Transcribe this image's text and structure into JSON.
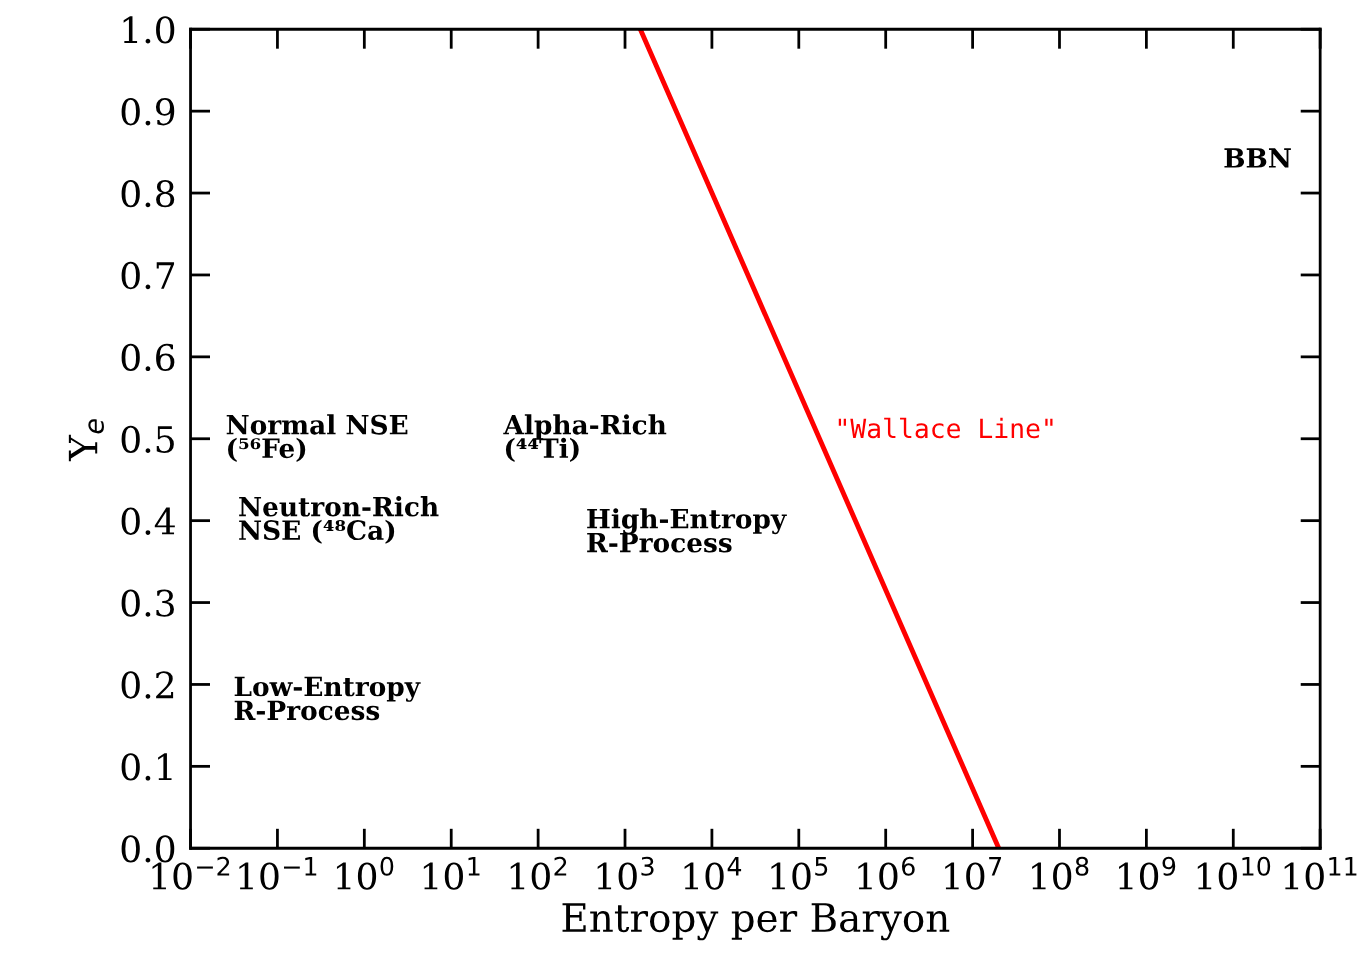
{
  "chart_data": {
    "type": "line",
    "xlabel": "Entropy per Baryon",
    "ylabel": "Y$_{e}$",
    "log": "x",
    "x": [
      1500,
      20000000
    ],
    "series": [
      {
        "name": "\"Wallace Line\"",
        "color": "#ff0000",
        "values": [
          1.0,
          0.0
        ]
      }
    ],
    "xlim": [
      0.01,
      100000000000
    ],
    "ylim": [
      0.0,
      1.0
    ],
    "xticks": [
      {
        "value": 0.01,
        "label": "10$^{−2}$"
      },
      {
        "value": 0.1,
        "label": "10$^{−1}$"
      },
      {
        "value": 1,
        "label": "10$^{0}$"
      },
      {
        "value": 10,
        "label": "10$^{1}$"
      },
      {
        "value": 100,
        "label": "10$^{2}$"
      },
      {
        "value": 1000,
        "label": "10$^{3}$"
      },
      {
        "value": 10000,
        "label": "10$^{4}$"
      },
      {
        "value": 100000,
        "label": "10$^{5}$"
      },
      {
        "value": 1000000,
        "label": "10$^{6}$"
      },
      {
        "value": 10000000,
        "label": "10$^{7}$"
      },
      {
        "value": 100000000,
        "label": "10$^{8}$"
      },
      {
        "value": 1000000000,
        "label": "10$^{9}$"
      },
      {
        "value": 10000000000,
        "label": "10$^{10}$"
      },
      {
        "value": 100000000000,
        "label": "10$^{11}$"
      }
    ],
    "yticks": [
      {
        "value": 0.0,
        "label": "0.0"
      },
      0.1,
      0.2,
      0.3,
      0.4,
      0.5,
      0.6,
      0.7,
      0.8,
      0.9,
      {
        "value": 1.0,
        "label": "1.0"
      }
    ],
    "grid": false,
    "legend": false,
    "annotations": [
      "Normal NSE\n(⁵⁶Fe)",
      "Alpha-Rich\n(⁴⁴Ti)",
      "Neutron-Rich\nNSE (⁴⁸Ca)",
      "High-Entropy\nR-Process",
      "Low-Entropy\nR-Process",
      "BBN"
    ]
  }
}
